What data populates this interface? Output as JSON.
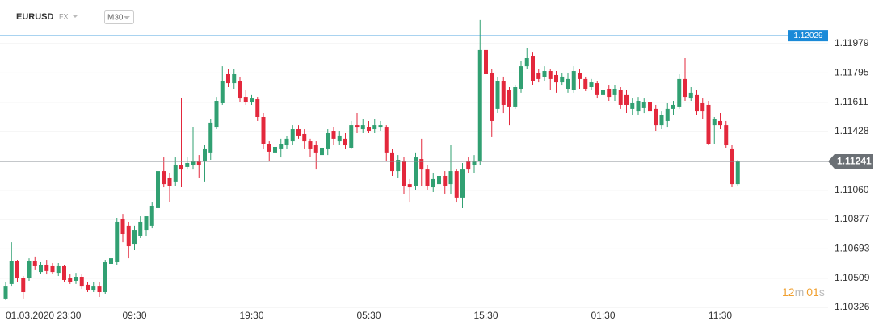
{
  "toolbar": {
    "symbol": "EURUSD",
    "market": "FX",
    "timeframe": "M30"
  },
  "chart_data": {
    "type": "candlestick",
    "categories": [
      "01.03.2020 23:30",
      null,
      null,
      null,
      null,
      null,
      null,
      null,
      null,
      null,
      null,
      null,
      null,
      null,
      null,
      null,
      null,
      null,
      null,
      null,
      null,
      null,
      "09:30",
      null,
      null,
      null,
      null,
      null,
      null,
      null,
      null,
      null,
      null,
      null,
      null,
      null,
      null,
      null,
      null,
      null,
      null,
      null,
      "19:30",
      null,
      null,
      null,
      null,
      null,
      null,
      null,
      null,
      null,
      null,
      null,
      null,
      null,
      null,
      null,
      null,
      null,
      null,
      null,
      "05:30",
      null,
      null,
      null,
      null,
      null,
      null,
      null,
      null,
      null,
      null,
      null,
      null,
      null,
      null,
      null,
      null,
      null,
      null,
      null,
      "15:30",
      null,
      null,
      null,
      null,
      null,
      null,
      null,
      null,
      null,
      null,
      null,
      null,
      null,
      null,
      null,
      null,
      null,
      null,
      null,
      "01:30",
      null,
      null,
      null,
      null,
      null,
      null,
      null,
      null,
      null,
      null,
      null,
      null,
      null,
      null,
      null,
      null,
      null,
      null,
      null,
      "11:30",
      null,
      null,
      null
    ],
    "open": [
      1.10382,
      1.10473,
      1.10619,
      1.10508,
      1.10508,
      1.10619,
      1.10548,
      1.10594,
      1.10584,
      1.10543,
      1.10584,
      1.10508,
      1.10493,
      1.10518,
      1.10468,
      1.10432,
      1.10457,
      1.10422,
      1.10599,
      1.10609,
      1.10877,
      1.10837,
      1.1072,
      1.10776,
      1.10811,
      1.10837,
      1.10948,
      1.1118,
      1.1114,
      1.11115,
      1.11216,
      1.11206,
      1.11216,
      1.11241,
      1.11241,
      1.11292,
      1.11453,
      1.11605,
      1.11787,
      1.11731,
      1.11746,
      1.11645,
      1.11615,
      1.1163,
      1.11519,
      1.11352,
      1.11292,
      1.11317,
      1.11342,
      1.11367,
      1.11443,
      1.11413,
      1.11367,
      1.11342,
      1.11281,
      1.11317,
      1.11433,
      1.11367,
      1.11383,
      1.11327,
      1.11468,
      1.11443,
      1.11458,
      1.11443,
      1.11453,
      1.11453,
      1.11292,
      1.1118,
      1.11241,
      1.11099,
      1.11089,
      1.11256,
      1.1119,
      1.11079,
      1.11099,
      1.1115,
      1.11099,
      1.1118,
      1.11014,
      1.11241,
      1.11216,
      1.11241,
      1.11939,
      1.11797,
      1.1157,
      1.11746,
      1.11686,
      1.11585,
      1.11696,
      1.11837,
      1.11898,
      1.11797,
      1.11767,
      1.11807,
      1.11782,
      1.11736,
      1.11696,
      1.11686,
      1.11797,
      1.11757,
      1.11706,
      1.11731,
      1.11656,
      1.11696,
      1.11656,
      1.11686,
      1.11656,
      1.1157,
      1.11554,
      1.11575,
      1.11615,
      1.1157,
      1.11468,
      1.11494,
      1.1157,
      1.11585,
      1.11757,
      1.11635,
      1.11656,
      1.11605,
      1.11595,
      1.11468,
      1.11494,
      1.11468,
      1.11317,
      1.11099
    ],
    "high": [
      1.10483,
      1.10735,
      1.10624,
      1.10523,
      1.10634,
      1.10645,
      1.10609,
      1.10624,
      1.10604,
      1.10604,
      1.10594,
      1.10533,
      1.10543,
      1.10533,
      1.10483,
      1.10483,
      1.10483,
      1.10624,
      1.10761,
      1.10887,
      1.10912,
      1.10862,
      1.10837,
      1.10897,
      1.10887,
      1.10988,
      1.11201,
      1.11266,
      1.11165,
      1.11266,
      1.11635,
      1.11266,
      1.11453,
      1.11281,
      1.11342,
      1.11504,
      1.11645,
      1.11837,
      1.11822,
      1.11822,
      1.11767,
      1.11686,
      1.11656,
      1.11645,
      1.11544,
      1.11367,
      1.11352,
      1.11383,
      1.11403,
      1.11468,
      1.11468,
      1.11443,
      1.11383,
      1.11367,
      1.11352,
      1.11443,
      1.11453,
      1.11433,
      1.11418,
      1.11494,
      1.11544,
      1.11504,
      1.11494,
      1.11504,
      1.11494,
      1.11468,
      1.11317,
      1.11281,
      1.11266,
      1.1113,
      1.11292,
      1.11383,
      1.11216,
      1.11165,
      1.1119,
      1.1118,
      1.11342,
      1.1119,
      1.11231,
      1.11266,
      1.11281,
      1.12126,
      1.11974,
      1.11822,
      1.11772,
      1.11772,
      1.11706,
      1.11721,
      1.11873,
      1.11949,
      1.11923,
      1.11822,
      1.11837,
      1.11822,
      1.11807,
      1.11797,
      1.11797,
      1.11837,
      1.11822,
      1.11772,
      1.11757,
      1.11746,
      1.11706,
      1.11721,
      1.11721,
      1.11706,
      1.11686,
      1.11635,
      1.11645,
      1.11635,
      1.11635,
      1.11595,
      1.11554,
      1.11605,
      1.1162,
      1.11787,
      1.11888,
      1.11706,
      1.11686,
      1.11635,
      1.1162,
      1.11519,
      1.11544,
      1.11494,
      1.11342,
      1.11251
    ],
    "low": [
      1.10372,
      1.10457,
      1.10483,
      1.10382,
      1.10493,
      1.10559,
      1.10533,
      1.10533,
      1.10533,
      1.10523,
      1.10483,
      1.10473,
      1.10473,
      1.10442,
      1.10422,
      1.10422,
      1.10392,
      1.10407,
      1.10584,
      1.10594,
      1.10735,
      1.10634,
      1.10685,
      1.10761,
      1.10776,
      1.10821,
      1.10938,
      1.11079,
      1.10988,
      1.11089,
      1.11079,
      1.1119,
      1.1119,
      1.1114,
      1.11115,
      1.11251,
      1.11443,
      1.11595,
      1.11706,
      1.11696,
      1.11615,
      1.11595,
      1.11595,
      1.11494,
      1.11317,
      1.11241,
      1.11266,
      1.11266,
      1.11317,
      1.11342,
      1.11383,
      1.11317,
      1.11266,
      1.1119,
      1.11251,
      1.11281,
      1.11342,
      1.11342,
      1.11317,
      1.11317,
      1.11418,
      1.11418,
      1.11418,
      1.11418,
      1.11433,
      1.11241,
      1.1115,
      1.1114,
      1.11039,
      1.10988,
      1.11064,
      1.11089,
      1.11064,
      1.11049,
      1.11064,
      1.11039,
      1.11039,
      1.10988,
      1.10948,
      1.11165,
      1.11165,
      1.11216,
      1.11746,
      1.11393,
      1.11544,
      1.11544,
      1.11468,
      1.1157,
      1.11671,
      1.11822,
      1.11721,
      1.11736,
      1.11746,
      1.11686,
      1.11671,
      1.11721,
      1.11671,
      1.11671,
      1.11696,
      1.11681,
      1.11686,
      1.11635,
      1.1162,
      1.1162,
      1.1162,
      1.1157,
      1.11544,
      1.11534,
      1.11534,
      1.11544,
      1.11534,
      1.11433,
      1.11443,
      1.11453,
      1.11534,
      1.1157,
      1.1162,
      1.1162,
      1.11534,
      1.11504,
      1.11342,
      1.11352,
      1.11443,
      1.11327,
      1.11079,
      1.11089
    ],
    "close": [
      1.10457,
      1.10619,
      1.10508,
      1.10422,
      1.10619,
      1.10584,
      1.10594,
      1.10554,
      1.10548,
      1.10584,
      1.10498,
      1.10483,
      1.10518,
      1.10457,
      1.10432,
      1.10457,
      1.10422,
      1.10609,
      1.10634,
      1.10862,
      1.10786,
      1.1071,
      1.10811,
      1.10862,
      1.10897,
      1.10963,
      1.1118,
      1.11099,
      1.11089,
      1.11216,
      1.1119,
      1.11231,
      1.11241,
      1.11216,
      1.11317,
      1.11484,
      1.1162,
      1.11746,
      1.11731,
      1.11787,
      1.11635,
      1.11615,
      1.11635,
      1.11519,
      1.11352,
      1.11302,
      1.11332,
      1.11352,
      1.11383,
      1.11443,
      1.11403,
      1.11367,
      1.11317,
      1.11292,
      1.11327,
      1.11418,
      1.11383,
      1.11403,
      1.11342,
      1.11468,
      1.11453,
      1.11468,
      1.11433,
      1.11468,
      1.11468,
      1.11292,
      1.1118,
      1.11251,
      1.11089,
      1.11079,
      1.11266,
      1.1119,
      1.11089,
      1.1113,
      1.1115,
      1.11089,
      1.1118,
      1.11014,
      1.1119,
      1.1119,
      1.11241,
      1.11939,
      1.11787,
      1.11494,
      1.11746,
      1.11595,
      1.11585,
      1.11706,
      1.11837,
      1.11888,
      1.11746,
      1.11757,
      1.11807,
      1.11757,
      1.11736,
      1.11772,
      1.11757,
      1.11807,
      1.11757,
      1.11696,
      1.11736,
      1.11656,
      1.11686,
      1.11645,
      1.11696,
      1.11595,
      1.11595,
      1.11605,
      1.1162,
      1.11615,
      1.11554,
      1.11468,
      1.11534,
      1.1157,
      1.11595,
      1.11757,
      1.11645,
      1.11671,
      1.11554,
      1.11554,
      1.11352,
      1.11504,
      1.11468,
      1.11342,
      1.11099,
      1.11241
    ],
    "up_color": "#31a072",
    "down_color": "#e3283c",
    "ylim": [
      1.10326,
      1.12252
    ],
    "yticks": [
      1.10326,
      1.10509,
      1.10693,
      1.10877,
      {
        "value": 1.1106,
        "label": "1.11060"
      },
      1.11428,
      1.11611,
      1.11795,
      1.11979
    ],
    "grid": true,
    "alert_line": 1.12029,
    "alert_color": "#1a8ad8",
    "current_price": 1.11241,
    "current_price_color": "#8a8f94",
    "countdown": {
      "minutes": "12",
      "minutes_unit": "m",
      "seconds": "01",
      "seconds_unit": "s"
    }
  }
}
